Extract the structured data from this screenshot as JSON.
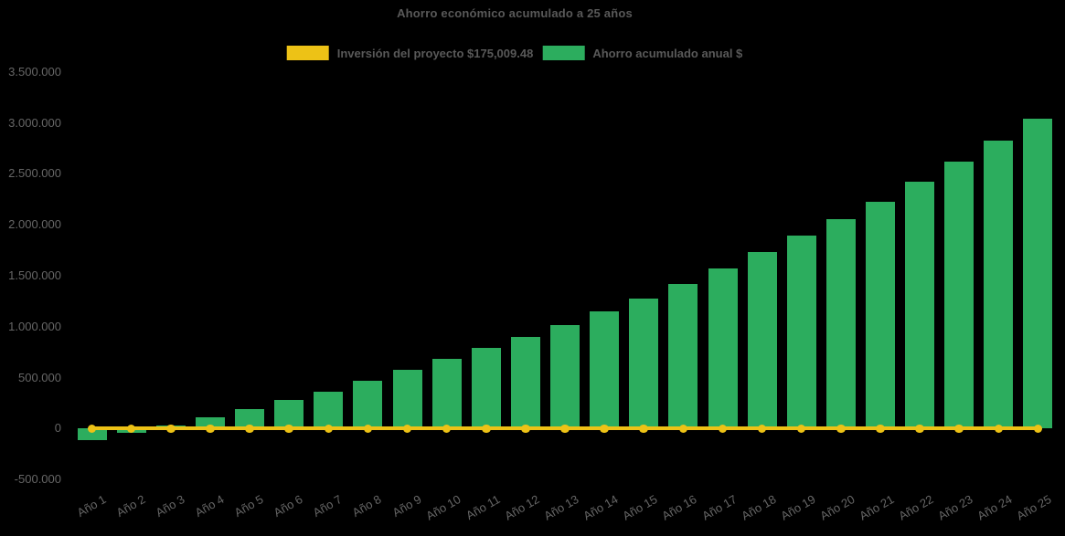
{
  "title": "Ahorro económico acumulado a 25 años",
  "legend": {
    "items": [
      {
        "label": "Inversión del proyecto $175,009.48",
        "color": "#EDC216",
        "series": "investment-line"
      },
      {
        "label": "Ahorro acumulado anual $",
        "color": "#2CAD5E",
        "series": "savings-bars"
      }
    ]
  },
  "chart_data": {
    "type": "bar",
    "title": "Ahorro económico acumulado a 25 años",
    "xlabel": "",
    "ylabel": "",
    "categories": [
      "Año 1",
      "Año 2",
      "Año 3",
      "Año 4",
      "Año 5",
      "Año 6",
      "Año 7",
      "Año 8",
      "Año 9",
      "Año 10",
      "Año 11",
      "Año 12",
      "Año 13",
      "Año 14",
      "Año 15",
      "Año 16",
      "Año 17",
      "Año 18",
      "Año 19",
      "Año 20",
      "Año 21",
      "Año 22",
      "Año 23",
      "Año 24",
      "Año 25"
    ],
    "series": [
      {
        "name": "Ahorro acumulado anual $",
        "type": "bar",
        "color": "#2CAD5E",
        "values": [
          -117000,
          -43000,
          30000,
          112000,
          193000,
          281000,
          366000,
          466000,
          577000,
          680000,
          788000,
          895000,
          1016000,
          1146000,
          1272000,
          1422000,
          1573000,
          1729000,
          1892000,
          2054000,
          2226000,
          2424000,
          2617000,
          2830000,
          3038000
        ]
      },
      {
        "name": "Inversión del proyecto $175,009.48",
        "type": "line",
        "color": "#EDC216",
        "marker": "circle",
        "constant_value": 0
      }
    ],
    "ylim": [
      -500000,
      3500000
    ],
    "ytick_step": 500000,
    "ytick_labels": [
      "3.500.000",
      "3.000.000",
      "2.500.000",
      "2.000.000",
      "1.500.000",
      "1.000.000",
      "500.000",
      "0",
      "-500.000"
    ],
    "gridlines": false,
    "legend_position": "top-center"
  }
}
